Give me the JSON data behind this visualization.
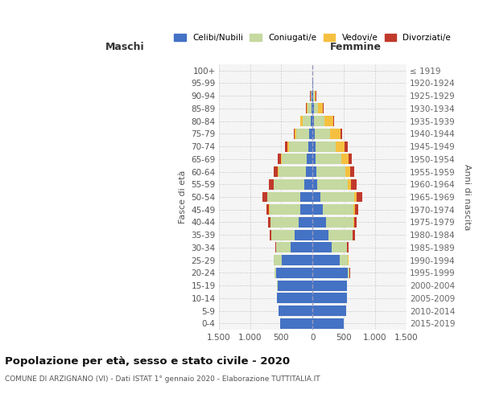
{
  "age_groups": [
    "0-4",
    "5-9",
    "10-14",
    "15-19",
    "20-24",
    "25-29",
    "30-34",
    "35-39",
    "40-44",
    "45-49",
    "50-54",
    "55-59",
    "60-64",
    "65-69",
    "70-74",
    "75-79",
    "80-84",
    "85-89",
    "90-94",
    "95-99",
    "100+"
  ],
  "birth_years": [
    "2015-2019",
    "2010-2014",
    "2005-2009",
    "2000-2004",
    "1995-1999",
    "1990-1994",
    "1985-1989",
    "1980-1984",
    "1975-1979",
    "1970-1974",
    "1965-1969",
    "1960-1964",
    "1955-1959",
    "1950-1954",
    "1945-1949",
    "1940-1944",
    "1935-1939",
    "1930-1934",
    "1925-1929",
    "1920-1924",
    "≤ 1919"
  ],
  "male_celibi": [
    520,
    545,
    570,
    560,
    580,
    490,
    350,
    280,
    220,
    200,
    190,
    130,
    100,
    90,
    70,
    50,
    30,
    20,
    10,
    4,
    2
  ],
  "male_coniugati": [
    0,
    0,
    0,
    10,
    30,
    130,
    230,
    380,
    450,
    490,
    530,
    490,
    450,
    400,
    310,
    210,
    130,
    60,
    20,
    3,
    1
  ],
  "male_vedovi": [
    0,
    0,
    0,
    0,
    1,
    1,
    1,
    2,
    2,
    3,
    5,
    5,
    10,
    15,
    20,
    25,
    30,
    15,
    5,
    0,
    0
  ],
  "male_divorziati": [
    0,
    0,
    0,
    1,
    2,
    5,
    15,
    30,
    35,
    45,
    80,
    70,
    60,
    50,
    40,
    20,
    10,
    5,
    2,
    0,
    0
  ],
  "female_nubili": [
    505,
    535,
    555,
    545,
    560,
    430,
    310,
    260,
    210,
    170,
    130,
    70,
    60,
    55,
    45,
    35,
    25,
    20,
    10,
    5,
    2
  ],
  "female_coniugate": [
    0,
    0,
    0,
    10,
    35,
    140,
    240,
    380,
    450,
    490,
    540,
    500,
    460,
    410,
    330,
    250,
    160,
    70,
    20,
    5,
    1
  ],
  "female_vedove": [
    0,
    0,
    0,
    0,
    1,
    2,
    3,
    5,
    8,
    15,
    30,
    50,
    80,
    110,
    140,
    160,
    150,
    80,
    25,
    5,
    0
  ],
  "female_divorziate": [
    0,
    0,
    0,
    1,
    2,
    8,
    18,
    30,
    40,
    60,
    90,
    80,
    65,
    55,
    45,
    30,
    15,
    8,
    3,
    0,
    0
  ],
  "color_celibi": "#4472C4",
  "color_coniugati": "#C5D9A0",
  "color_vedovi": "#F5C040",
  "color_divorziati": "#C0392B",
  "xlim": 1500,
  "title": "Popolazione per età, sesso e stato civile - 2020",
  "subtitle": "COMUNE DI ARZIGNANO (VI) - Dati ISTAT 1° gennaio 2020 - Elaborazione TUTTITALIA.IT",
  "ylabel_left": "Fasce di età",
  "ylabel_right": "Anni di nascita",
  "label_maschi": "Maschi",
  "label_femmine": "Femmine",
  "legend_labels": [
    "Celibi/Nubili",
    "Coniugati/e",
    "Vedovi/e",
    "Divorziati/e"
  ],
  "xtick_labels": [
    "1.500",
    "1.000",
    "500",
    "0",
    "500",
    "1.000",
    "1.500"
  ],
  "xtick_vals": [
    -1500,
    -1000,
    -500,
    0,
    500,
    1000,
    1500
  ],
  "bg_color": "#FFFFFF",
  "plot_bg_color": "#F5F5F5",
  "grid_color": "#CCCCCC"
}
